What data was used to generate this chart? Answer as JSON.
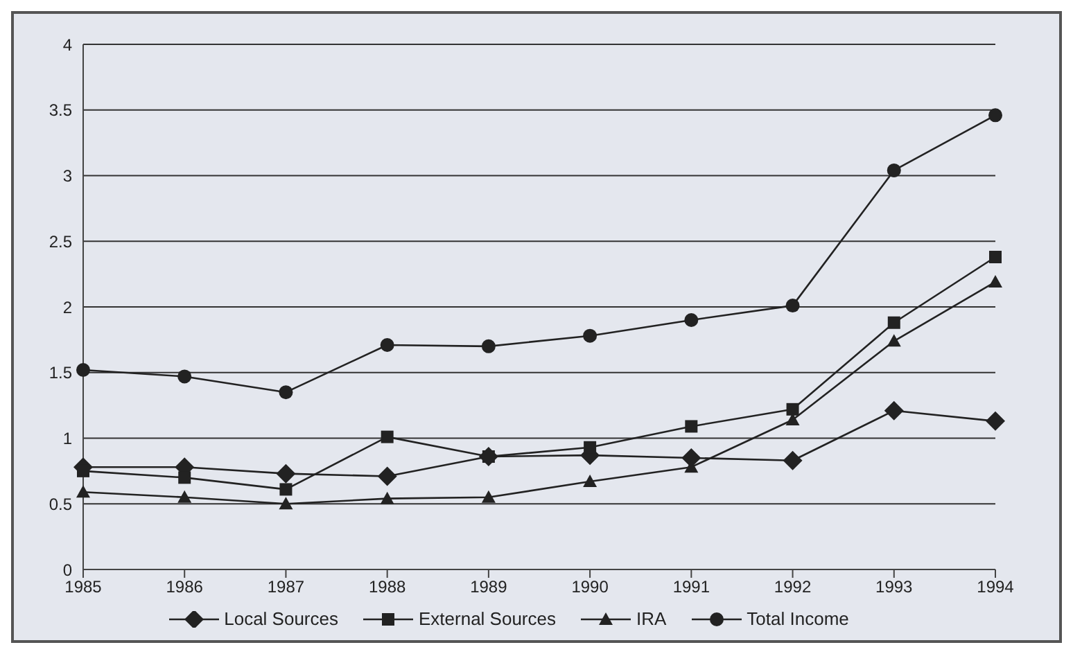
{
  "chart_data": {
    "type": "line",
    "categories": [
      "1985",
      "1986",
      "1987",
      "1988",
      "1989",
      "1990",
      "1991",
      "1992",
      "1993",
      "1994"
    ],
    "series": [
      {
        "name": "Local Sources",
        "color": "#222222",
        "marker": "diamond",
        "values": [
          0.78,
          0.78,
          0.73,
          0.71,
          0.86,
          0.87,
          0.85,
          0.83,
          1.21,
          1.13
        ]
      },
      {
        "name": "External Sources",
        "color": "#222222",
        "marker": "square",
        "values": [
          0.75,
          0.7,
          0.61,
          1.01,
          0.86,
          0.93,
          1.09,
          1.22,
          1.88,
          2.38
        ]
      },
      {
        "name": "IRA",
        "color": "#222222",
        "marker": "triangle",
        "values": [
          0.59,
          0.55,
          0.5,
          0.54,
          0.55,
          0.67,
          0.78,
          1.14,
          1.74,
          2.19
        ]
      },
      {
        "name": "Total Income",
        "color": "#222222",
        "marker": "circle",
        "values": [
          1.52,
          1.47,
          1.35,
          1.71,
          1.7,
          1.78,
          1.9,
          2.01,
          3.04,
          3.46
        ]
      }
    ],
    "ylim": [
      0,
      4
    ],
    "yticks": [
      0,
      0.5,
      1,
      1.5,
      2,
      2.5,
      3,
      3.5,
      4
    ],
    "grid": "y",
    "legend": "bottom",
    "line_style": "solid"
  }
}
